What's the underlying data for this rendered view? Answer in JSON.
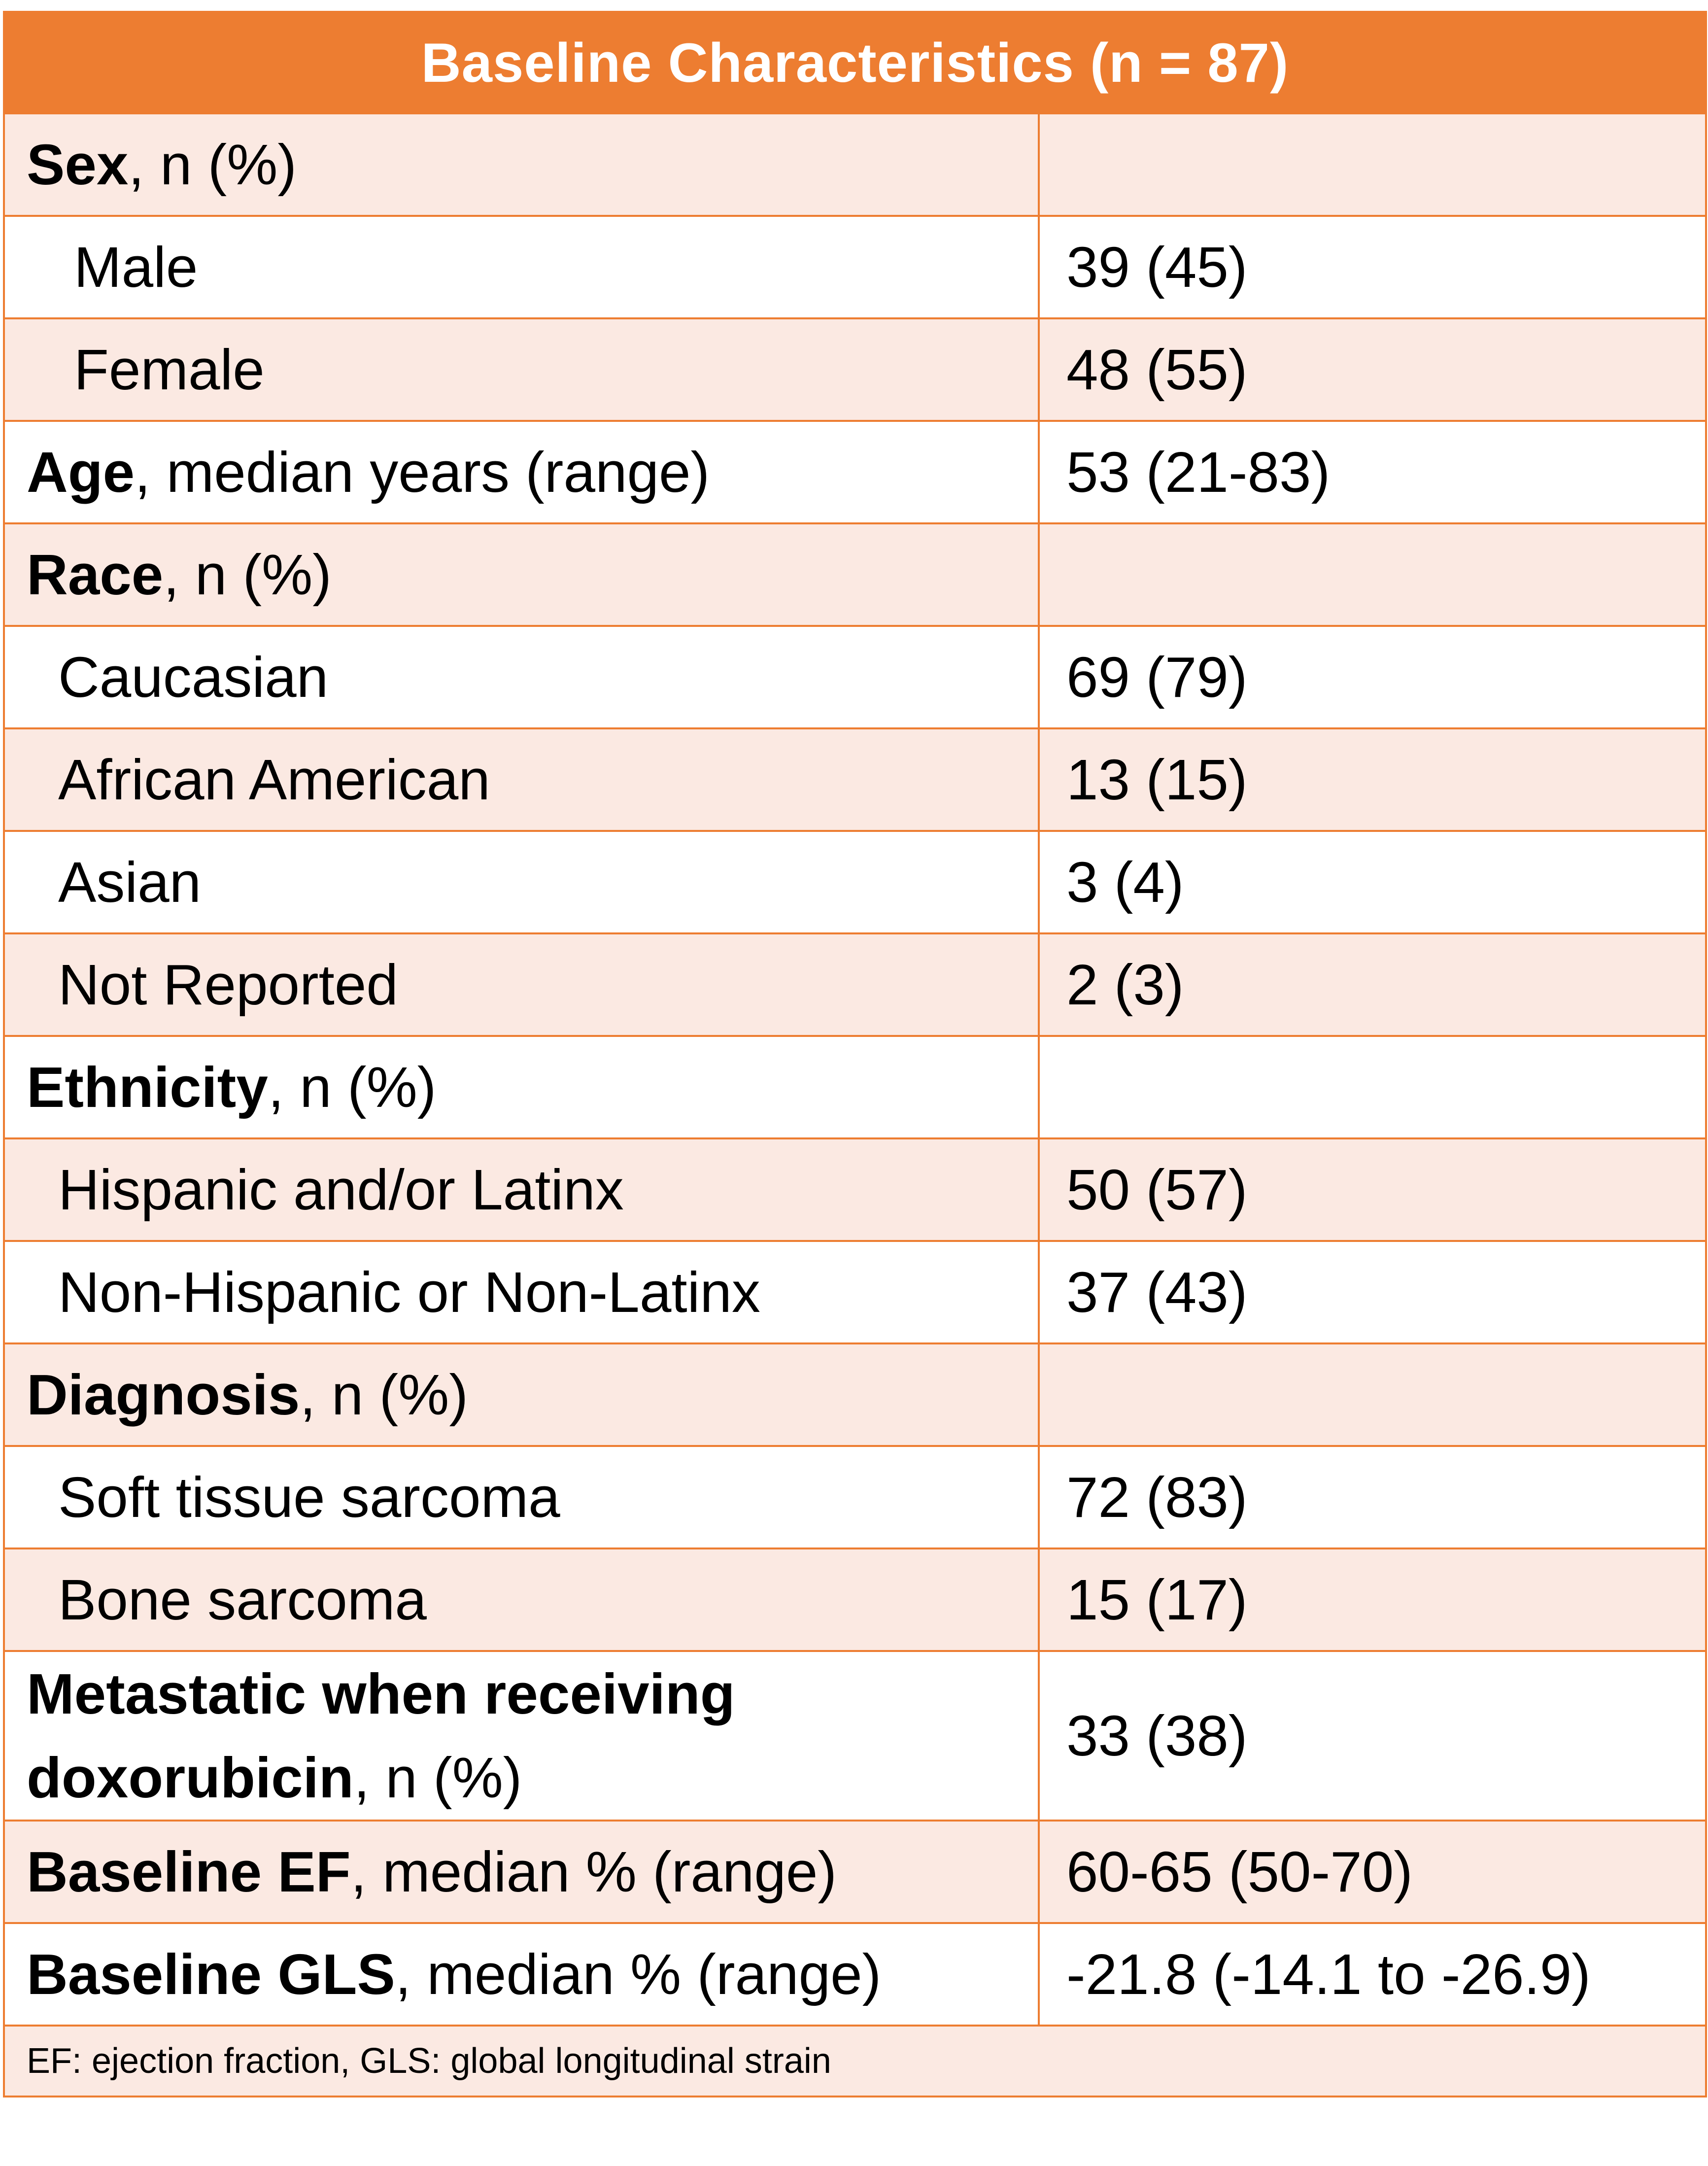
{
  "table": {
    "title": "Baseline Characteristics (n = 87)",
    "rows": [
      {
        "bold": "Sex",
        "rest": ", n (%)",
        "value": ""
      },
      {
        "bold": "",
        "rest": "Male",
        "value": "39 (45)"
      },
      {
        "bold": "",
        "rest": "Female",
        "value": "48 (55)"
      },
      {
        "bold": "Age",
        "rest": ", median years (range)",
        "value": "53 (21-83)"
      },
      {
        "bold": "Race",
        "rest": ", n (%)",
        "value": ""
      },
      {
        "bold": "",
        "rest": "Caucasian",
        "value": "69 (79)"
      },
      {
        "bold": "",
        "rest": "African American",
        "value": "13 (15)"
      },
      {
        "bold": "",
        "rest": "Asian",
        "value": "3 (4)"
      },
      {
        "bold": "",
        "rest": "Not Reported",
        "value": "2 (3)"
      },
      {
        "bold": "Ethnicity",
        "rest": ", n (%)",
        "value": ""
      },
      {
        "bold": "",
        "rest": "Hispanic and/or Latinx",
        "value": "50 (57)"
      },
      {
        "bold": "",
        "rest": "Non-Hispanic or Non-Latinx",
        "value": "37 (43)"
      },
      {
        "bold": "Diagnosis",
        "rest": ", n (%)",
        "value": ""
      },
      {
        "bold": "",
        "rest": "Soft tissue sarcoma",
        "value": "72 (83)"
      },
      {
        "bold": "",
        "rest": "Bone sarcoma",
        "value": "15 (17)"
      },
      {
        "bold_line1": "Metastatic when receiving",
        "bold_line2": "doxorubicin",
        "rest": ", n (%)",
        "value": "33 (38)"
      },
      {
        "bold": "Baseline EF",
        "rest": ", median % (range)",
        "value": "60-65 (50-70)"
      },
      {
        "bold": "Baseline GLS",
        "rest": ", median % (range)",
        "value": "-21.8 (-14.1 to -26.9)"
      }
    ],
    "footnote": "EF: ejection fraction, GLS: global longitudinal strain"
  },
  "colors": {
    "accent": "#ED7D31",
    "row_shade": "#FBE9E2",
    "row_plain": "#FFFFFF",
    "header_text": "#FFFFFF"
  }
}
